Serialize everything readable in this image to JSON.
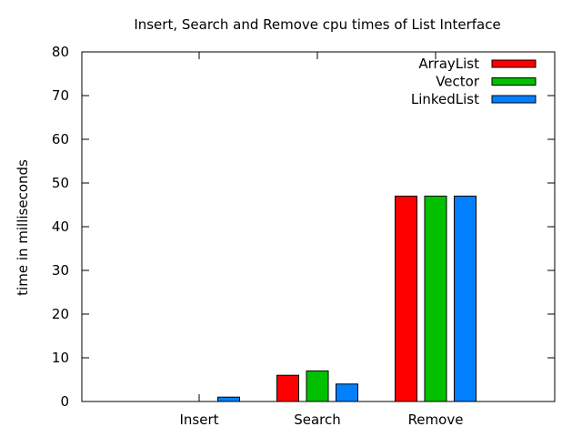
{
  "chart_data": {
    "type": "bar",
    "title": "Insert, Search and Remove cpu times of List Interface",
    "xlabel": "",
    "ylabel": "time in milliseconds",
    "ylim": [
      0,
      80
    ],
    "yticks": [
      0,
      10,
      20,
      30,
      40,
      50,
      60,
      70,
      80
    ],
    "categories": [
      "Insert",
      "Search",
      "Remove"
    ],
    "grid": false,
    "legend_position": "top-right",
    "series": [
      {
        "name": "ArrayList",
        "color": "#ff0000",
        "values": [
          0,
          6,
          47
        ]
      },
      {
        "name": "Vector",
        "color": "#00c000",
        "values": [
          0,
          7,
          47
        ]
      },
      {
        "name": "LinkedList",
        "color": "#0080ff",
        "values": [
          1,
          4,
          47
        ]
      }
    ]
  }
}
